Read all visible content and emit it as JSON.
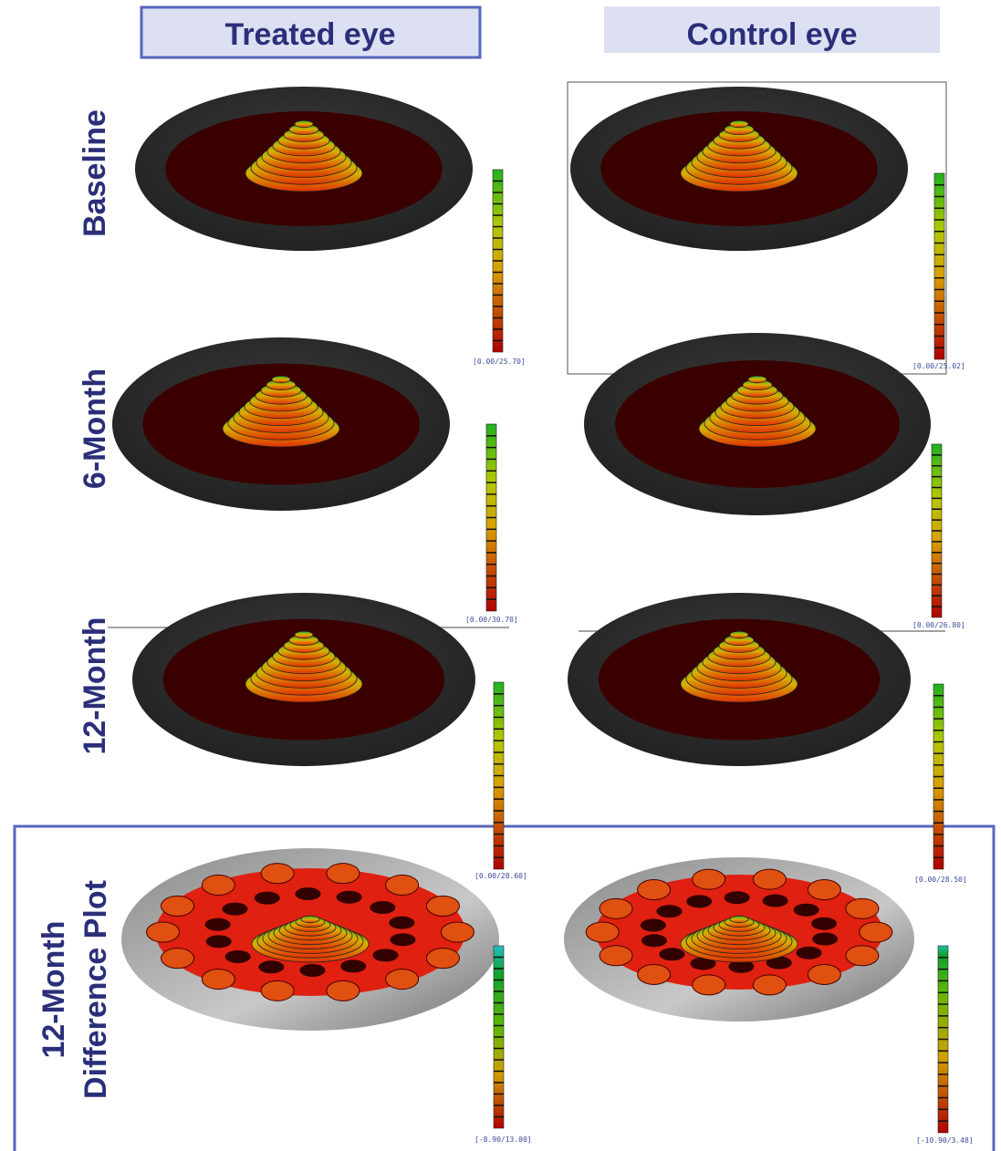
{
  "columns": [
    "Treated eye",
    "Control eye"
  ],
  "rows": [
    {
      "label": [
        "Baseline"
      ],
      "panels": [
        "[0.00/25.70]",
        "[0.00/25.02]"
      ]
    },
    {
      "label": [
        "6-Month"
      ],
      "panels": [
        "[0.00/30.70]",
        "[0.00/26.80]"
      ]
    },
    {
      "label": [
        "12-Month"
      ],
      "panels": [
        "[0.00/28.60]",
        "[0.00/28.50]"
      ]
    },
    {
      "label": [
        "12-Month",
        "Difference Plot"
      ],
      "panels": [
        "[-8.90/13.00]",
        "[-10.90/3.48]"
      ]
    }
  ]
}
